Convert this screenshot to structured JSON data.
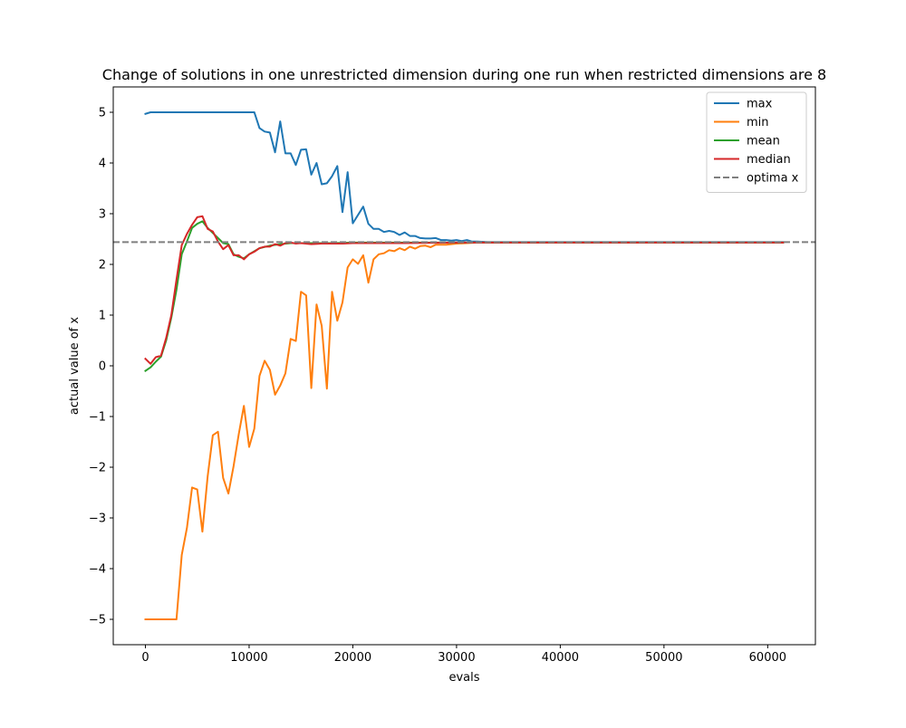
{
  "chart_data": {
    "type": "line",
    "title": "Change of solutions in one unrestricted dimension during one run when restricted dimensions are 8",
    "xlabel": "evals",
    "ylabel": "actual value of x",
    "xlim": [
      -3100,
      64600
    ],
    "ylim": [
      -5.5,
      5.5
    ],
    "xticks": [
      0,
      10000,
      20000,
      30000,
      40000,
      50000,
      60000
    ],
    "yticks": [
      -5,
      -4,
      -3,
      -2,
      -1,
      0,
      1,
      2,
      3,
      4,
      5
    ],
    "grid": false,
    "legend_position": "top-right",
    "series": [
      {
        "name": "max",
        "color": "#1f77b4",
        "x": [
          0,
          500,
          1000,
          2000,
          3000,
          4000,
          5000,
          6000,
          7000,
          8000,
          9000,
          10000,
          10500,
          11000,
          11500,
          12000,
          12500,
          13000,
          13500,
          14000,
          14500,
          15000,
          15500,
          16000,
          16500,
          17000,
          17500,
          18000,
          18500,
          19000,
          19500,
          20000,
          21000,
          21500,
          22000,
          22500,
          23000,
          23500,
          24000,
          24500,
          25000,
          25500,
          26000,
          26500,
          27000,
          27500,
          28000,
          28500,
          29000,
          29500,
          30000,
          30500,
          31000,
          31500,
          32000,
          33000,
          35000,
          40000,
          45000,
          50000,
          55000,
          61500
        ],
        "y": [
          4.97,
          5.0,
          5.0,
          5.0,
          5.0,
          5.0,
          5.0,
          5.0,
          5.0,
          5.0,
          5.0,
          5.0,
          5.0,
          4.69,
          4.62,
          4.6,
          4.21,
          4.82,
          4.19,
          4.19,
          3.96,
          4.26,
          4.27,
          3.77,
          4.0,
          3.58,
          3.6,
          3.74,
          3.94,
          3.03,
          3.82,
          2.81,
          3.14,
          2.8,
          2.7,
          2.7,
          2.64,
          2.66,
          2.64,
          2.58,
          2.63,
          2.56,
          2.56,
          2.52,
          2.51,
          2.51,
          2.52,
          2.48,
          2.48,
          2.47,
          2.48,
          2.46,
          2.48,
          2.45,
          2.45,
          2.44,
          2.44,
          2.44,
          2.44,
          2.44,
          2.44,
          2.44
        ]
      },
      {
        "name": "min",
        "color": "#ff7f0e",
        "x": [
          0,
          1000,
          2000,
          3000,
          3500,
          4000,
          4500,
          5000,
          5500,
          6000,
          6500,
          7000,
          7500,
          8000,
          8500,
          9000,
          9500,
          10000,
          10500,
          11000,
          11500,
          12000,
          12500,
          13000,
          13500,
          14000,
          14500,
          15000,
          15500,
          16000,
          16500,
          17000,
          17500,
          18000,
          18500,
          19000,
          19500,
          20000,
          20500,
          21000,
          21500,
          22000,
          22500,
          23000,
          23500,
          24000,
          24500,
          25000,
          25500,
          26000,
          26500,
          27000,
          27500,
          28000,
          29000,
          30000,
          31000,
          32000,
          35000,
          40000,
          50000,
          61500
        ],
        "y": [
          -5.0,
          -5.0,
          -5.0,
          -5.0,
          -3.73,
          -3.2,
          -2.4,
          -2.44,
          -3.27,
          -2.18,
          -1.37,
          -1.3,
          -2.21,
          -2.52,
          -1.98,
          -1.35,
          -0.79,
          -1.6,
          -1.24,
          -0.2,
          0.1,
          -0.08,
          -0.57,
          -0.39,
          -0.15,
          0.53,
          0.49,
          1.46,
          1.39,
          -0.44,
          1.21,
          0.79,
          -0.45,
          1.46,
          0.89,
          1.25,
          1.94,
          2.1,
          2.01,
          2.18,
          1.64,
          2.1,
          2.2,
          2.22,
          2.28,
          2.26,
          2.32,
          2.28,
          2.35,
          2.31,
          2.36,
          2.37,
          2.34,
          2.39,
          2.39,
          2.41,
          2.42,
          2.43,
          2.43,
          2.43,
          2.43,
          2.43
        ]
      },
      {
        "name": "mean",
        "color": "#2ca02c",
        "x": [
          0,
          500,
          1000,
          1500,
          2000,
          2500,
          3000,
          3500,
          4000,
          4500,
          5000,
          5500,
          6000,
          6500,
          7000,
          7500,
          8000,
          8500,
          9000,
          9500,
          10000,
          11000,
          12000,
          13000,
          14000,
          15000,
          16000,
          18000,
          20000,
          25000,
          30000,
          35000,
          40000,
          50000,
          61500
        ],
        "y": [
          -0.1,
          -0.03,
          0.08,
          0.18,
          0.5,
          0.95,
          1.5,
          2.2,
          2.45,
          2.72,
          2.8,
          2.85,
          2.72,
          2.62,
          2.52,
          2.42,
          2.4,
          2.2,
          2.15,
          2.12,
          2.2,
          2.32,
          2.37,
          2.4,
          2.42,
          2.42,
          2.42,
          2.42,
          2.43,
          2.43,
          2.43,
          2.43,
          2.43,
          2.43,
          2.43
        ]
      },
      {
        "name": "median",
        "color": "#d62728",
        "x": [
          0,
          500,
          1000,
          1500,
          2000,
          2500,
          3000,
          3500,
          4000,
          4500,
          5000,
          5500,
          6000,
          6500,
          7000,
          7500,
          8000,
          8500,
          9000,
          9500,
          10000,
          10500,
          11000,
          11500,
          12000,
          12500,
          13000,
          13500,
          14000,
          14500,
          15000,
          16000,
          17000,
          18000,
          19000,
          20000,
          22000,
          25000,
          30000,
          35000,
          40000,
          50000,
          61500
        ],
        "y": [
          0.14,
          0.04,
          0.17,
          0.2,
          0.55,
          1.0,
          1.7,
          2.38,
          2.6,
          2.78,
          2.93,
          2.95,
          2.7,
          2.65,
          2.45,
          2.3,
          2.38,
          2.18,
          2.18,
          2.1,
          2.2,
          2.25,
          2.32,
          2.35,
          2.35,
          2.4,
          2.37,
          2.42,
          2.43,
          2.41,
          2.42,
          2.4,
          2.41,
          2.41,
          2.41,
          2.42,
          2.42,
          2.42,
          2.43,
          2.43,
          2.43,
          2.43,
          2.43
        ]
      }
    ],
    "reference_lines": [
      {
        "name": "optima x",
        "axis": "y",
        "value": 2.44,
        "color": "#7f7f7f",
        "style": "dashed"
      }
    ]
  }
}
